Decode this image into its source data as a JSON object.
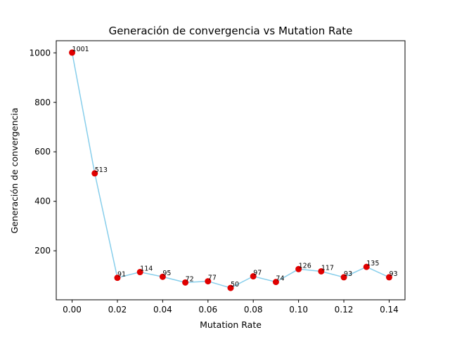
{
  "chart_data": {
    "type": "line",
    "title": "Generación de convergencia vs Mutation Rate",
    "xlabel": "Mutation Rate",
    "ylabel": "Generación de convergencia",
    "xlim": [
      -0.007,
      0.147
    ],
    "ylim": [
      2,
      1049
    ],
    "xticks": [
      "0.00",
      "0.02",
      "0.04",
      "0.06",
      "0.08",
      "0.10",
      "0.12",
      "0.14"
    ],
    "yticks": [
      "200",
      "400",
      "600",
      "800",
      "1000"
    ],
    "grid": false,
    "series": [
      {
        "x": [
          0.0,
          0.01,
          0.02,
          0.03,
          0.04,
          0.05,
          0.06,
          0.07,
          0.08,
          0.09,
          0.1,
          0.11,
          0.12,
          0.13,
          0.14
        ],
        "values": [
          1001,
          513,
          91,
          114,
          95,
          72,
          77,
          50,
          97,
          74,
          126,
          117,
          93,
          135,
          93
        ],
        "labels": [
          "1001",
          "513",
          "91",
          "114",
          "95",
          "72",
          "77",
          "50",
          "97",
          "74",
          "126",
          "117",
          "93",
          "135",
          "93"
        ]
      }
    ],
    "colors": {
      "line": "#87ceeb",
      "marker": "#e00000",
      "frame": "#000000"
    }
  }
}
